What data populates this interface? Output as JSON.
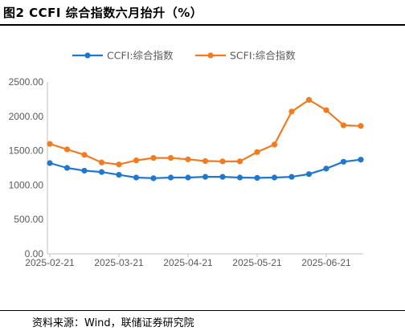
{
  "figure": {
    "title": "图2   CCFI 综合指数六月抬升（%）",
    "source": "资料来源：Wind，联储证券研究院"
  },
  "chart_data": {
    "type": "line",
    "title": "",
    "xlabel": "",
    "ylabel": "",
    "ylim": [
      0,
      2500
    ],
    "yticks": [
      "0.00",
      "500.00",
      "1000.00",
      "1500.00",
      "2000.00",
      "2500.00"
    ],
    "xtick_labels": [
      "2025-02-21",
      "2025-03-21",
      "2025-04-21",
      "2025-05-21",
      "2025-06-21"
    ],
    "xtick_index": [
      0,
      4,
      8,
      12,
      16
    ],
    "x": [
      "2025-02-21",
      "2025-02-28",
      "2025-03-07",
      "2025-03-14",
      "2025-03-21",
      "2025-03-28",
      "2025-04-04",
      "2025-04-11",
      "2025-04-18",
      "2025-04-25",
      "2025-05-02",
      "2025-05-09",
      "2025-05-16",
      "2025-05-23",
      "2025-05-30",
      "2025-06-06",
      "2025-06-13",
      "2025-06-20",
      "2025-06-27"
    ],
    "legend_position": "top",
    "grid": false,
    "series": [
      {
        "name": "CCFI:综合指数",
        "color": "#1f77d0",
        "values": [
          1320,
          1250,
          1210,
          1190,
          1150,
          1110,
          1100,
          1110,
          1110,
          1120,
          1120,
          1110,
          1105,
          1110,
          1120,
          1160,
          1240,
          1340,
          1370
        ]
      },
      {
        "name": "SCFI:综合指数",
        "color": "#f57a1f",
        "values": [
          1600,
          1520,
          1440,
          1330,
          1300,
          1360,
          1395,
          1395,
          1375,
          1350,
          1345,
          1345,
          1480,
          1590,
          2070,
          2240,
          2090,
          1870,
          1860
        ]
      }
    ]
  }
}
